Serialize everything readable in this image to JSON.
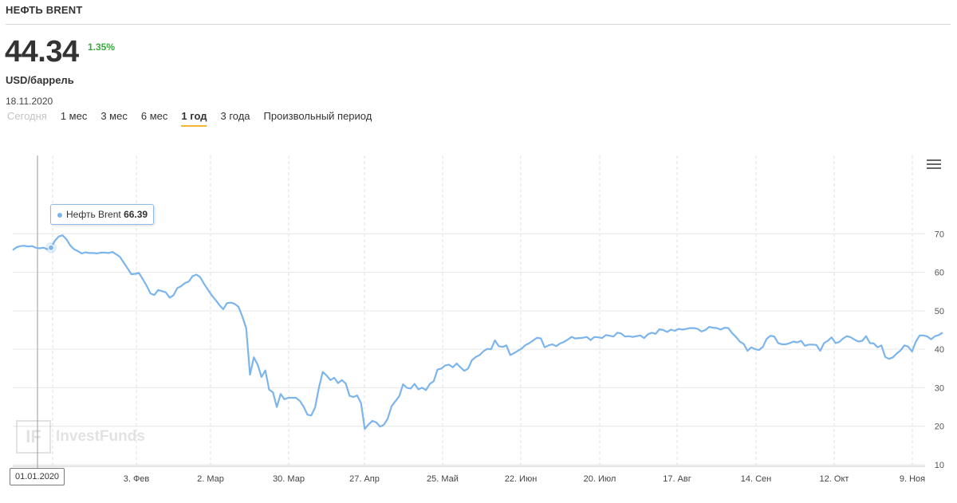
{
  "header": {
    "title": "НЕФТЬ BRENT",
    "price": "44.34",
    "change": "1.35%",
    "unit": "USD/баррель",
    "date": "18.11.2020"
  },
  "periods": [
    {
      "label": "Сегодня",
      "state": "disabled"
    },
    {
      "label": "1 мес",
      "state": "normal"
    },
    {
      "label": "3 мес",
      "state": "normal"
    },
    {
      "label": "6 мес",
      "state": "normal"
    },
    {
      "label": "1 год",
      "state": "active"
    },
    {
      "label": "3 года",
      "state": "normal"
    },
    {
      "label": "Произвольный период",
      "state": "normal"
    }
  ],
  "colors": {
    "line": "#7cb5ec",
    "change": "#3aa840",
    "active_underline": "#f2b632"
  },
  "icons": {
    "menu": "hamburger-menu-icon"
  },
  "watermark": "InvestFunds",
  "tooltip": {
    "series": "Нефть Brent",
    "value": "66.39",
    "date": "01.01.2020"
  },
  "chart_data": {
    "type": "line",
    "series": [
      {
        "name": "Нефть Brent",
        "values": [
          65.8,
          66.5,
          66.8,
          66.9,
          66.7,
          66.8,
          66.4,
          66.2,
          66.4,
          66.0,
          66.39,
          68.2,
          69.3,
          69.6,
          68.6,
          67.0,
          66.0,
          65.5,
          64.9,
          65.2,
          65.0,
          65.0,
          64.9,
          65.1,
          65.1,
          65.0,
          65.3,
          64.7,
          64.0,
          62.5,
          61.0,
          59.5,
          59.6,
          59.8,
          58.2,
          56.5,
          54.5,
          54.1,
          55.4,
          55.1,
          54.8,
          53.4,
          54.0,
          55.9,
          56.4,
          57.2,
          57.6,
          59.0,
          59.4,
          58.7,
          57.0,
          55.5,
          54.0,
          52.8,
          51.5,
          50.4,
          52.0,
          52.1,
          51.8,
          51.0,
          48.5,
          45.5,
          33.4,
          37.9,
          36.0,
          32.8,
          34.5,
          29.5,
          28.8,
          25.0,
          28.4,
          27.0,
          27.4,
          27.4,
          27.4,
          26.6,
          25.1,
          23.0,
          22.8,
          24.9,
          30.0,
          34.1,
          33.2,
          32.0,
          32.6,
          31.2,
          32.0,
          31.1,
          27.9,
          27.6,
          28.0,
          26.0,
          19.3,
          20.5,
          21.4,
          21.0,
          19.9,
          20.4,
          22.0,
          25.2,
          26.5,
          27.8,
          30.9,
          30.0,
          29.8,
          31.0,
          29.6,
          30.0,
          29.4,
          31.0,
          31.7,
          34.7,
          35.0,
          35.8,
          36.0,
          35.3,
          36.3,
          35.3,
          34.4,
          35.0,
          37.2,
          38.0,
          38.5,
          39.5,
          40.1,
          40.0,
          42.3,
          40.8,
          40.6,
          41.0,
          38.5,
          39.0,
          39.6,
          40.2,
          41.1,
          41.6,
          42.3,
          43.0,
          42.8,
          40.5,
          41.0,
          41.3,
          40.8,
          41.5,
          41.9,
          42.5,
          43.2,
          42.8,
          42.9,
          43.0,
          43.2,
          42.4,
          43.2,
          43.1,
          42.9,
          43.7,
          43.5,
          43.3,
          44.3,
          44.1,
          43.3,
          43.4,
          43.2,
          43.4,
          43.6,
          42.9,
          43.9,
          44.3,
          44.0,
          45.2,
          45.0,
          44.5,
          45.1,
          44.8,
          45.3,
          45.1,
          45.3,
          45.5,
          45.5,
          45.3,
          44.6,
          45.0,
          45.8,
          45.6,
          45.5,
          45.1,
          45.6,
          45.5,
          44.2,
          43.2,
          42.0,
          41.4,
          39.6,
          40.5,
          40.0,
          39.8,
          40.6,
          42.7,
          43.5,
          43.3,
          41.6,
          41.3,
          41.3,
          41.6,
          42.0,
          41.8,
          42.2,
          40.9,
          41.2,
          41.2,
          41.1,
          39.6,
          41.6,
          42.2,
          43.1,
          41.6,
          41.9,
          42.8,
          43.4,
          43.1,
          42.5,
          42.0,
          42.2,
          43.4,
          41.6,
          41.5,
          40.5,
          41.0,
          38.0,
          37.5,
          37.9,
          38.9,
          39.7,
          41.0,
          40.7,
          39.4,
          42.0,
          43.6,
          43.6,
          43.3,
          42.6,
          43.4,
          43.7,
          44.34
        ]
      }
    ],
    "x_tick_labels": [
      "3. Фев",
      "2. Мар",
      "30. Мар",
      "27. Апр",
      "25. Май",
      "22. Июн",
      "20. Июл",
      "17. Авг",
      "14. Сен",
      "12. Окт",
      "9. Ноя"
    ],
    "ylim": [
      10,
      80
    ],
    "y_ticks": [
      10,
      20,
      30,
      40,
      50,
      60,
      70
    ],
    "grid": true,
    "xlabel": "",
    "ylabel": ""
  }
}
